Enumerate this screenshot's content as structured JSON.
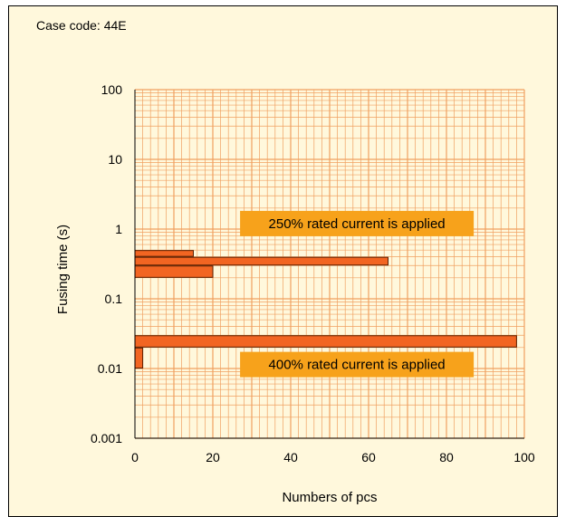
{
  "header": {
    "case_code": "Case code: 44E"
  },
  "chart_data": {
    "type": "bar",
    "orientation": "horizontal",
    "title": "",
    "xlabel": "Numbers of pcs",
    "ylabel": "Fusing time (s)",
    "x_axis": {
      "min": 0,
      "max": 100,
      "ticks": [
        "0",
        "20",
        "40",
        "60",
        "80",
        "100"
      ]
    },
    "y_axis": {
      "scale": "log",
      "min": 0.001,
      "max": 100,
      "ticks": [
        "0.001",
        "0.01",
        "0.1",
        "1",
        "10",
        "100"
      ]
    },
    "grid": true,
    "colors": {
      "bar_fill": "#f26522",
      "bar_edge": "#5a1e00",
      "grid": "#f0a060",
      "annotation_bg": "#f7a21b",
      "background": "#fff8dc"
    },
    "series": [
      {
        "name": "250% rated current is applied",
        "bars": [
          {
            "time_low": 0.4,
            "time_high": 0.5,
            "count": 15
          },
          {
            "time_low": 0.3,
            "time_high": 0.4,
            "count": 65
          },
          {
            "time_low": 0.2,
            "time_high": 0.3,
            "count": 20
          }
        ]
      },
      {
        "name": "400% rated current is applied",
        "bars": [
          {
            "time_low": 0.02,
            "time_high": 0.03,
            "count": 98
          },
          {
            "time_low": 0.01,
            "time_high": 0.02,
            "count": 2
          }
        ]
      }
    ],
    "annotations": [
      {
        "text": "250% rated current is applied",
        "at_time": 1.2,
        "x_range": [
          27,
          87
        ]
      },
      {
        "text": "400% rated current is applied",
        "at_time": 0.0114,
        "x_range": [
          27,
          87
        ]
      }
    ]
  }
}
